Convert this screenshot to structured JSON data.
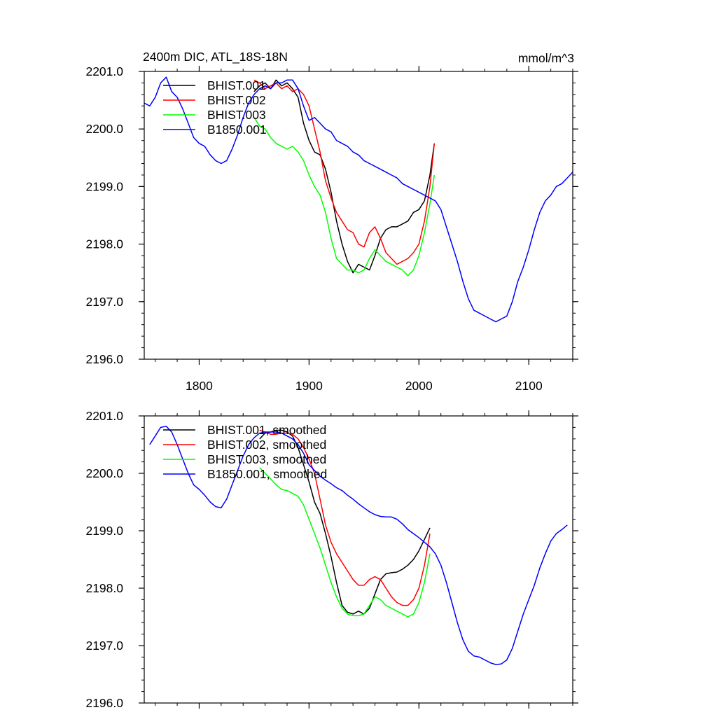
{
  "chart_data": [
    {
      "type": "line",
      "title": "2400m DIC, ATL_18S-18N",
      "units": "mmol/m^3",
      "xlabel": "",
      "ylabel": "",
      "xlim": [
        1750,
        2140
      ],
      "ylim": [
        2196.0,
        2201.0
      ],
      "x_ticks": [
        1800,
        1900,
        2000,
        2100
      ],
      "x_tick_labels": [
        "1800",
        "1900",
        "2000",
        "2100"
      ],
      "y_ticks": [
        2196.0,
        2197.0,
        2198.0,
        2199.0,
        2200.0,
        2201.0
      ],
      "y_tick_labels": [
        "2196.0",
        "2197.0",
        "2198.0",
        "2199.0",
        "2200.0",
        "2201.0"
      ],
      "grid": false,
      "legend_position": "top-left",
      "series": [
        {
          "name": "BHIST.001",
          "color": "#000000",
          "x": [
            1850,
            1855,
            1860,
            1865,
            1870,
            1875,
            1880,
            1885,
            1890,
            1895,
            1900,
            1905,
            1910,
            1915,
            1920,
            1925,
            1930,
            1935,
            1940,
            1945,
            1950,
            1955,
            1960,
            1965,
            1970,
            1975,
            1980,
            1985,
            1990,
            1995,
            2000,
            2005,
            2010,
            2014
          ],
          "values": [
            2200.65,
            2200.75,
            2200.8,
            2200.7,
            2200.85,
            2200.75,
            2200.8,
            2200.7,
            2200.55,
            2200.1,
            2199.8,
            2199.6,
            2199.55,
            2199.3,
            2198.9,
            2198.4,
            2198.0,
            2197.7,
            2197.5,
            2197.65,
            2197.6,
            2197.55,
            2197.8,
            2198.1,
            2198.25,
            2198.3,
            2198.3,
            2198.35,
            2198.4,
            2198.55,
            2198.6,
            2198.75,
            2199.2,
            2199.75
          ]
        },
        {
          "name": "BHIST.002",
          "color": "#ff0000",
          "x": [
            1850,
            1855,
            1860,
            1865,
            1870,
            1875,
            1880,
            1885,
            1890,
            1895,
            1900,
            1905,
            1910,
            1915,
            1920,
            1925,
            1930,
            1935,
            1940,
            1945,
            1950,
            1955,
            1960,
            1965,
            1970,
            1975,
            1980,
            1985,
            1990,
            1995,
            2000,
            2005,
            2010,
            2014
          ],
          "values": [
            2200.85,
            2200.8,
            2200.7,
            2200.75,
            2200.8,
            2200.7,
            2200.75,
            2200.65,
            2200.7,
            2200.6,
            2200.4,
            2200.0,
            2199.6,
            2199.1,
            2198.8,
            2198.55,
            2198.4,
            2198.25,
            2198.2,
            2198.0,
            2197.95,
            2198.2,
            2198.3,
            2198.1,
            2197.85,
            2197.75,
            2197.65,
            2197.7,
            2197.75,
            2197.85,
            2198.0,
            2198.4,
            2199.0,
            2199.75
          ]
        },
        {
          "name": "BHIST.003",
          "color": "#00ff00",
          "x": [
            1850,
            1855,
            1860,
            1865,
            1870,
            1875,
            1880,
            1885,
            1890,
            1895,
            1900,
            1905,
            1910,
            1915,
            1920,
            1925,
            1930,
            1935,
            1940,
            1945,
            1950,
            1955,
            1960,
            1965,
            1970,
            1975,
            1980,
            1985,
            1990,
            1995,
            2000,
            2005,
            2010,
            2014
          ],
          "values": [
            2200.2,
            2200.05,
            2200.0,
            2199.85,
            2199.75,
            2199.7,
            2199.65,
            2199.7,
            2199.6,
            2199.45,
            2199.2,
            2199.0,
            2198.85,
            2198.55,
            2198.1,
            2197.75,
            2197.65,
            2197.55,
            2197.55,
            2197.5,
            2197.55,
            2197.75,
            2197.9,
            2197.8,
            2197.7,
            2197.65,
            2197.6,
            2197.55,
            2197.45,
            2197.55,
            2197.8,
            2198.2,
            2198.7,
            2199.2
          ]
        },
        {
          "name": "B1850.001",
          "color": "#0000ff",
          "x": [
            1750,
            1755,
            1760,
            1765,
            1770,
            1775,
            1780,
            1785,
            1790,
            1795,
            1800,
            1805,
            1810,
            1815,
            1820,
            1825,
            1830,
            1835,
            1840,
            1845,
            1850,
            1855,
            1860,
            1865,
            1870,
            1875,
            1880,
            1885,
            1890,
            1895,
            1900,
            1905,
            1910,
            1915,
            1920,
            1925,
            1930,
            1935,
            1940,
            1945,
            1950,
            1955,
            1960,
            1965,
            1970,
            1975,
            1980,
            1985,
            1990,
            1995,
            2000,
            2005,
            2010,
            2015,
            2020,
            2025,
            2030,
            2035,
            2040,
            2045,
            2050,
            2055,
            2060,
            2065,
            2070,
            2075,
            2080,
            2085,
            2090,
            2095,
            2100,
            2105,
            2110,
            2115,
            2120,
            2125,
            2130,
            2135,
            2140
          ],
          "values": [
            2200.45,
            2200.4,
            2200.55,
            2200.8,
            2200.9,
            2200.65,
            2200.55,
            2200.35,
            2200.1,
            2199.85,
            2199.75,
            2199.7,
            2199.55,
            2199.45,
            2199.4,
            2199.45,
            2199.65,
            2199.9,
            2200.2,
            2200.45,
            2200.6,
            2200.7,
            2200.75,
            2200.7,
            2200.8,
            2200.8,
            2200.85,
            2200.85,
            2200.7,
            2200.4,
            2200.15,
            2200.2,
            2200.1,
            2200.0,
            2199.95,
            2199.8,
            2199.75,
            2199.7,
            2199.6,
            2199.55,
            2199.45,
            2199.4,
            2199.35,
            2199.3,
            2199.25,
            2199.2,
            2199.15,
            2199.05,
            2199.0,
            2198.95,
            2198.9,
            2198.85,
            2198.8,
            2198.75,
            2198.6,
            2198.3,
            2198.0,
            2197.7,
            2197.35,
            2197.05,
            2196.85,
            2196.8,
            2196.75,
            2196.7,
            2196.65,
            2196.7,
            2196.75,
            2197.0,
            2197.35,
            2197.6,
            2197.9,
            2198.25,
            2198.55,
            2198.75,
            2198.85,
            2199.0,
            2199.05,
            2199.15,
            2199.25
          ]
        }
      ]
    },
    {
      "type": "line",
      "title": "",
      "xlabel": "",
      "ylabel": "",
      "xlim": [
        1750,
        2140
      ],
      "ylim": [
        2196.0,
        2201.0
      ],
      "x_ticks": [
        1800,
        1900,
        2000,
        2100
      ],
      "x_tick_labels": [],
      "y_ticks": [
        2196.0,
        2197.0,
        2198.0,
        2199.0,
        2200.0,
        2201.0
      ],
      "y_tick_labels": [
        "2196.0",
        "2197.0",
        "2198.0",
        "2199.0",
        "2200.0",
        "2201.0"
      ],
      "grid": false,
      "legend_position": "top-left",
      "series": [
        {
          "name": "BHIST.001, smoothed",
          "color": "#000000",
          "x": [
            1855,
            1860,
            1865,
            1870,
            1875,
            1880,
            1885,
            1890,
            1895,
            1900,
            1905,
            1910,
            1915,
            1920,
            1925,
            1930,
            1935,
            1940,
            1945,
            1950,
            1955,
            1960,
            1965,
            1970,
            1975,
            1980,
            1985,
            1990,
            1995,
            2000,
            2005,
            2010
          ],
          "values": [
            2200.6,
            2200.7,
            2200.72,
            2200.75,
            2200.75,
            2200.72,
            2200.65,
            2200.45,
            2200.15,
            2199.85,
            2199.5,
            2199.3,
            2198.95,
            2198.55,
            2198.1,
            2197.7,
            2197.58,
            2197.55,
            2197.6,
            2197.55,
            2197.65,
            2197.9,
            2198.15,
            2198.25,
            2198.27,
            2198.28,
            2198.33,
            2198.4,
            2198.5,
            2198.65,
            2198.85,
            2199.05
          ]
        },
        {
          "name": "BHIST.002, smoothed",
          "color": "#ff0000",
          "x": [
            1855,
            1860,
            1865,
            1870,
            1875,
            1880,
            1885,
            1890,
            1895,
            1900,
            1905,
            1910,
            1915,
            1920,
            1925,
            1930,
            1935,
            1940,
            1945,
            1950,
            1955,
            1960,
            1965,
            1970,
            1975,
            1980,
            1985,
            1990,
            1995,
            2000,
            2005,
            2010
          ],
          "values": [
            2200.75,
            2200.72,
            2200.68,
            2200.68,
            2200.7,
            2200.7,
            2200.68,
            2200.6,
            2200.45,
            2200.25,
            2200.0,
            2199.55,
            2199.1,
            2198.8,
            2198.6,
            2198.45,
            2198.3,
            2198.15,
            2198.05,
            2198.05,
            2198.15,
            2198.2,
            2198.15,
            2198.0,
            2197.85,
            2197.75,
            2197.7,
            2197.7,
            2197.8,
            2198.0,
            2198.4,
            2198.95
          ]
        },
        {
          "name": "BHIST.003, smoothed",
          "color": "#00ff00",
          "x": [
            1855,
            1860,
            1865,
            1870,
            1875,
            1880,
            1885,
            1890,
            1895,
            1900,
            1905,
            1910,
            1915,
            1920,
            1925,
            1930,
            1935,
            1940,
            1945,
            1950,
            1955,
            1960,
            1965,
            1970,
            1975,
            1980,
            1985,
            1990,
            1995,
            2000,
            2005,
            2010
          ],
          "values": [
            2200.1,
            2200.0,
            2199.9,
            2199.8,
            2199.72,
            2199.7,
            2199.65,
            2199.6,
            2199.45,
            2199.2,
            2198.95,
            2198.7,
            2198.4,
            2198.1,
            2197.85,
            2197.65,
            2197.55,
            2197.52,
            2197.52,
            2197.55,
            2197.7,
            2197.85,
            2197.8,
            2197.7,
            2197.65,
            2197.6,
            2197.55,
            2197.5,
            2197.55,
            2197.75,
            2198.1,
            2198.6
          ]
        },
        {
          "name": "B1850.001, smoothed",
          "color": "#0000ff",
          "x": [
            1755,
            1760,
            1765,
            1770,
            1775,
            1780,
            1785,
            1790,
            1795,
            1800,
            1805,
            1810,
            1815,
            1820,
            1825,
            1830,
            1835,
            1840,
            1845,
            1850,
            1855,
            1860,
            1865,
            1870,
            1875,
            1880,
            1885,
            1890,
            1895,
            1900,
            1905,
            1910,
            1915,
            1920,
            1925,
            1930,
            1935,
            1940,
            1945,
            1950,
            1955,
            1960,
            1965,
            1970,
            1975,
            1980,
            1985,
            1990,
            1995,
            2000,
            2005,
            2010,
            2015,
            2020,
            2025,
            2030,
            2035,
            2040,
            2045,
            2050,
            2055,
            2060,
            2065,
            2070,
            2075,
            2080,
            2085,
            2090,
            2095,
            2100,
            2105,
            2110,
            2115,
            2120,
            2125,
            2130,
            2135
          ],
          "values": [
            2200.5,
            2200.65,
            2200.8,
            2200.82,
            2200.72,
            2200.5,
            2200.25,
            2200.0,
            2199.8,
            2199.72,
            2199.62,
            2199.5,
            2199.42,
            2199.4,
            2199.55,
            2199.8,
            2200.05,
            2200.3,
            2200.5,
            2200.62,
            2200.7,
            2200.72,
            2200.72,
            2200.72,
            2200.7,
            2200.65,
            2200.6,
            2200.5,
            2200.35,
            2200.15,
            2200.05,
            2199.95,
            2199.88,
            2199.82,
            2199.75,
            2199.7,
            2199.62,
            2199.55,
            2199.47,
            2199.4,
            2199.33,
            2199.28,
            2199.25,
            2199.24,
            2199.24,
            2199.2,
            2199.12,
            2199.02,
            2198.95,
            2198.88,
            2198.8,
            2198.72,
            2198.6,
            2198.4,
            2198.1,
            2197.75,
            2197.4,
            2197.1,
            2196.9,
            2196.82,
            2196.8,
            2196.75,
            2196.7,
            2196.67,
            2196.68,
            2196.75,
            2196.95,
            2197.25,
            2197.55,
            2197.8,
            2198.05,
            2198.35,
            2198.6,
            2198.82,
            2198.95,
            2199.02,
            2199.1
          ]
        }
      ]
    }
  ]
}
